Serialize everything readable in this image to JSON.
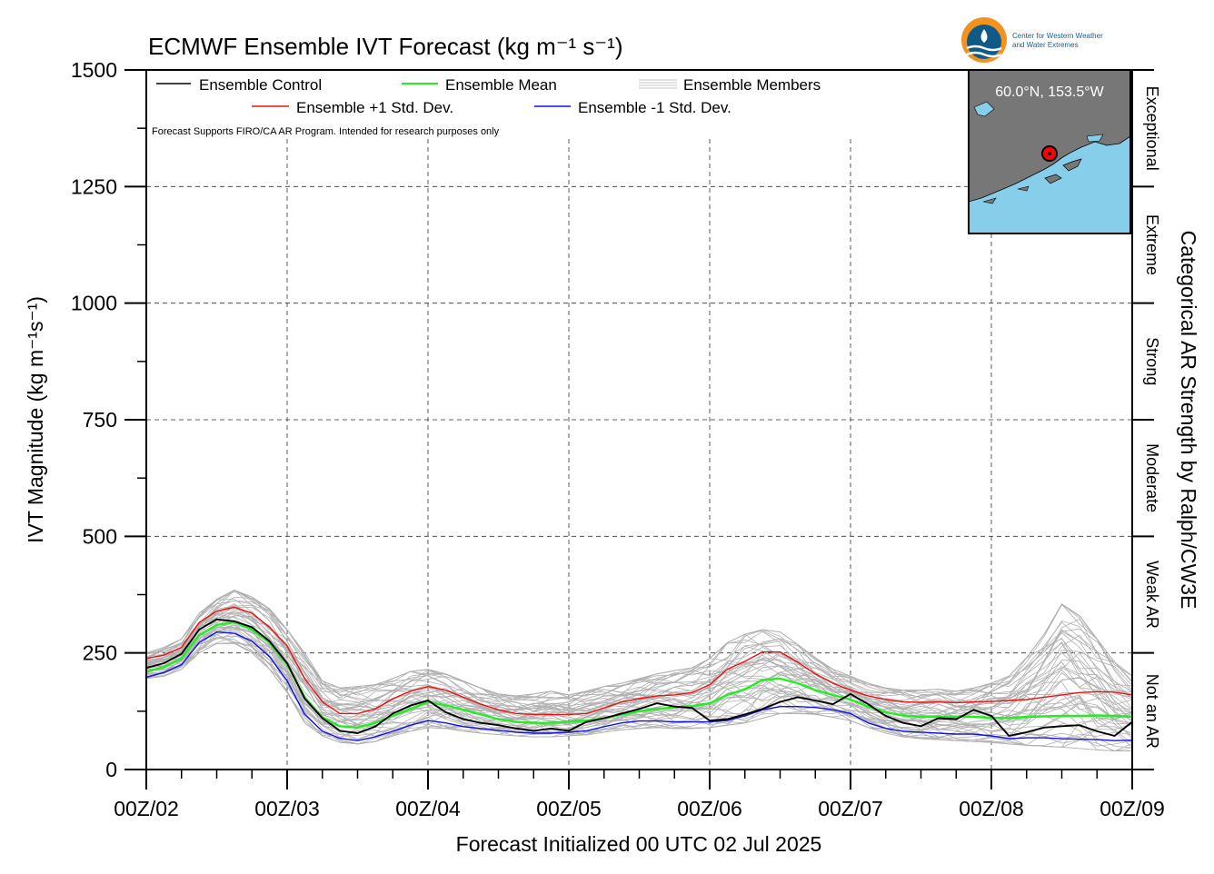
{
  "chart_data": {
    "type": "line",
    "title": "ECMWF Ensemble IVT Forecast (kg m⁻¹ s⁻¹)",
    "xlabel": "Forecast Initialized 00 UTC 02 Jul 2025",
    "ylabel": "IVT Magnitude (kg m⁻¹s⁻¹)",
    "right_axis_label": "Categorical AR Strength by Ralph/CW3E",
    "ylim": [
      0,
      1500
    ],
    "yticks": [
      0,
      250,
      500,
      750,
      1000,
      1250,
      1500
    ],
    "x_range_hours": [
      0,
      168
    ],
    "x_tick_labels": [
      "00Z/02",
      "00Z/03",
      "00Z/04",
      "00Z/05",
      "00Z/06",
      "00Z/07",
      "00Z/08",
      "00Z/09"
    ],
    "grid": true,
    "categories": [
      {
        "label": "Not an AR",
        "min": 0,
        "max": 250
      },
      {
        "label": "Weak AR",
        "min": 250,
        "max": 500
      },
      {
        "label": "Moderate",
        "min": 500,
        "max": 750
      },
      {
        "label": "Strong",
        "min": 750,
        "max": 1000
      },
      {
        "label": "Extreme",
        "min": 1000,
        "max": 1250
      },
      {
        "label": "Exceptional",
        "min": 1250,
        "max": 1500
      }
    ],
    "legend": {
      "placement": "top-left",
      "entries": [
        {
          "label": "Ensemble Control",
          "color": "#000000"
        },
        {
          "label": "Ensemble Mean",
          "color": "#22ee22"
        },
        {
          "label": "Ensemble Members",
          "color": "#b0b0b0"
        },
        {
          "label": "Ensemble +1 Std. Dev.",
          "color": "#ee1111"
        },
        {
          "label": "Ensemble -1 Std. Dev.",
          "color": "#1111ee"
        }
      ],
      "note": "Forecast Supports FIRO/CA AR Program. Intended for research purposes only"
    },
    "series": [
      {
        "name": "Ensemble Control",
        "color": "#000000",
        "x": [
          0,
          3,
          6,
          9,
          12,
          15,
          18,
          21,
          24,
          27,
          30,
          33,
          36,
          39,
          42,
          45,
          48,
          51,
          54,
          57,
          60,
          63,
          66,
          69,
          72,
          75,
          78,
          81,
          84,
          87,
          90,
          93,
          96,
          99,
          102,
          105,
          108,
          111,
          114,
          117,
          120,
          123,
          126,
          129,
          132,
          135,
          138,
          141,
          144,
          147,
          150,
          153,
          156,
          159,
          162,
          165,
          168
        ],
        "values": [
          218,
          228,
          248,
          300,
          322,
          318,
          305,
          275,
          228,
          152,
          110,
          83,
          78,
          92,
          120,
          137,
          148,
          123,
          108,
          100,
          95,
          88,
          83,
          88,
          83,
          102,
          110,
          120,
          130,
          142,
          135,
          132,
          105,
          108,
          118,
          130,
          145,
          155,
          148,
          140,
          162,
          140,
          115,
          100,
          93,
          110,
          108,
          128,
          115,
          72,
          80,
          90,
          93,
          95,
          82,
          72,
          102
        ]
      },
      {
        "name": "Ensemble Mean",
        "color": "#22ee22",
        "x": [
          0,
          3,
          6,
          9,
          12,
          15,
          18,
          21,
          24,
          27,
          30,
          33,
          36,
          39,
          42,
          45,
          48,
          51,
          54,
          57,
          60,
          63,
          66,
          69,
          72,
          75,
          78,
          81,
          84,
          87,
          90,
          93,
          96,
          99,
          102,
          105,
          108,
          111,
          114,
          117,
          120,
          123,
          126,
          129,
          132,
          135,
          138,
          141,
          144,
          147,
          150,
          153,
          156,
          159,
          162,
          165,
          168
        ],
        "values": [
          210,
          220,
          238,
          288,
          310,
          316,
          300,
          272,
          225,
          155,
          112,
          93,
          90,
          100,
          115,
          130,
          145,
          138,
          128,
          118,
          108,
          102,
          100,
          100,
          103,
          105,
          110,
          118,
          125,
          130,
          133,
          136,
          142,
          160,
          172,
          192,
          195,
          185,
          170,
          160,
          150,
          135,
          123,
          116,
          113,
          113,
          113,
          113,
          111,
          110,
          113,
          114,
          115,
          115,
          116,
          115,
          113
        ]
      },
      {
        "name": "Ensemble +1 Std. Dev.",
        "color": "#ee1111",
        "x": [
          0,
          3,
          6,
          9,
          12,
          15,
          18,
          21,
          24,
          27,
          30,
          33,
          36,
          39,
          42,
          45,
          48,
          51,
          54,
          57,
          60,
          63,
          66,
          69,
          72,
          75,
          78,
          81,
          84,
          87,
          90,
          93,
          96,
          99,
          102,
          105,
          108,
          111,
          114,
          117,
          120,
          123,
          126,
          129,
          132,
          135,
          138,
          141,
          144,
          147,
          150,
          153,
          156,
          159,
          162,
          165,
          168
        ],
        "values": [
          238,
          245,
          262,
          315,
          340,
          348,
          335,
          305,
          265,
          195,
          145,
          120,
          120,
          130,
          152,
          168,
          178,
          170,
          155,
          140,
          128,
          120,
          118,
          118,
          118,
          120,
          132,
          145,
          152,
          158,
          160,
          165,
          182,
          215,
          232,
          252,
          252,
          230,
          205,
          185,
          170,
          158,
          150,
          145,
          144,
          145,
          143,
          145,
          146,
          148,
          150,
          155,
          160,
          165,
          167,
          166,
          160
        ]
      },
      {
        "name": "Ensemble -1 Std. Dev.",
        "color": "#1111ee",
        "x": [
          0,
          3,
          6,
          9,
          12,
          15,
          18,
          21,
          24,
          27,
          30,
          33,
          36,
          39,
          42,
          45,
          48,
          51,
          54,
          57,
          60,
          63,
          66,
          69,
          72,
          75,
          78,
          81,
          84,
          87,
          90,
          93,
          96,
          99,
          102,
          105,
          108,
          111,
          114,
          117,
          120,
          123,
          126,
          129,
          132,
          135,
          138,
          141,
          144,
          147,
          150,
          153,
          156,
          159,
          162,
          165,
          168
        ],
        "values": [
          198,
          208,
          225,
          272,
          295,
          292,
          275,
          242,
          190,
          118,
          82,
          67,
          62,
          70,
          82,
          95,
          105,
          100,
          92,
          88,
          84,
          80,
          78,
          78,
          80,
          83,
          92,
          100,
          104,
          104,
          102,
          102,
          102,
          105,
          115,
          128,
          135,
          135,
          133,
          128,
          120,
          100,
          88,
          82,
          80,
          78,
          76,
          76,
          72,
          66,
          68,
          68,
          66,
          65,
          64,
          62,
          63
        ]
      }
    ],
    "members_band": {
      "name": "Ensemble Members",
      "color": "#b0b0b0",
      "count": 50,
      "x": [
        0,
        3,
        6,
        9,
        12,
        15,
        18,
        21,
        24,
        27,
        30,
        33,
        36,
        39,
        42,
        45,
        48,
        51,
        54,
        57,
        60,
        63,
        66,
        69,
        72,
        75,
        78,
        81,
        84,
        87,
        90,
        93,
        96,
        99,
        102,
        105,
        108,
        111,
        114,
        117,
        120,
        123,
        126,
        129,
        132,
        135,
        138,
        141,
        144,
        147,
        150,
        153,
        156,
        159,
        162,
        165,
        168
      ],
      "min": [
        195,
        200,
        215,
        250,
        270,
        270,
        250,
        215,
        165,
        100,
        72,
        58,
        55,
        60,
        72,
        82,
        90,
        88,
        82,
        78,
        75,
        72,
        70,
        70,
        72,
        74,
        80,
        85,
        88,
        90,
        88,
        88,
        90,
        95,
        100,
        110,
        120,
        120,
        118,
        112,
        105,
        90,
        78,
        70,
        66,
        64,
        62,
        60,
        58,
        55,
        52,
        50,
        48,
        45,
        42,
        40,
        40
      ],
      "max": [
        250,
        262,
        280,
        335,
        365,
        385,
        370,
        345,
        300,
        250,
        190,
        175,
        178,
        182,
        195,
        210,
        215,
        205,
        190,
        175,
        162,
        158,
        162,
        168,
        160,
        168,
        178,
        185,
        195,
        205,
        212,
        218,
        238,
        272,
        290,
        300,
        295,
        268,
        240,
        215,
        200,
        185,
        175,
        170,
        170,
        172,
        168,
        175,
        185,
        200,
        240,
        290,
        355,
        330,
        280,
        230,
        200
      ]
    },
    "inset_map": {
      "location_label": "60.0°N, 153.5°W",
      "ocean_color": "#87ceeb",
      "land_color": "#777777"
    },
    "logo": {
      "org_line1": "Center for Western Weather",
      "org_line2": "and Water Extremes"
    }
  }
}
